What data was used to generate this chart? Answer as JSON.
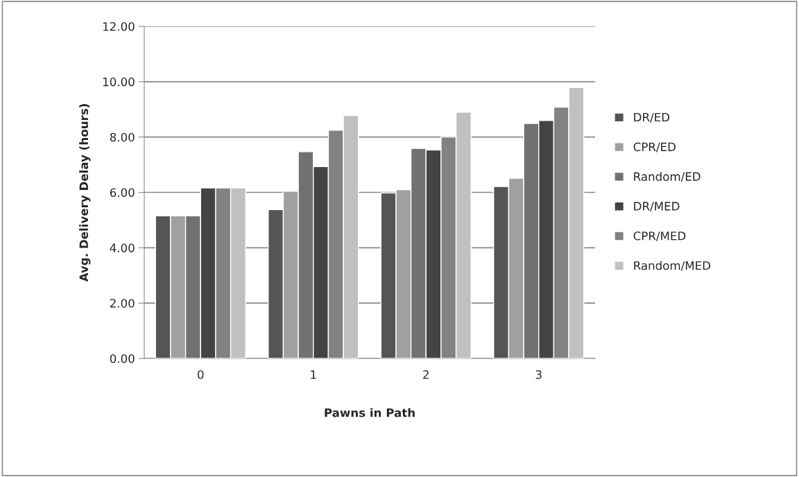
{
  "chart_data": {
    "type": "bar",
    "xlabel": "Pawns in Path",
    "ylabel": "Avg. Delivery Delay (hours)",
    "categories": [
      "0",
      "1",
      "2",
      "3"
    ],
    "series": [
      {
        "name": "DR/ED",
        "color": "#555555",
        "values": [
          5.15,
          5.38,
          5.98,
          6.21
        ]
      },
      {
        "name": "CPR/ED",
        "color": "#a0a0a0",
        "values": [
          5.15,
          6.04,
          6.1,
          6.51
        ]
      },
      {
        "name": "Random/ED",
        "color": "#717171",
        "values": [
          5.15,
          7.47,
          7.59,
          8.49
        ]
      },
      {
        "name": "DR/MED",
        "color": "#444444",
        "values": [
          6.16,
          6.93,
          7.53,
          8.6
        ]
      },
      {
        "name": "CPR/MED",
        "color": "#828282",
        "values": [
          6.16,
          8.25,
          8.0,
          9.08
        ]
      },
      {
        "name": "Random/MED",
        "color": "#c0c0c0",
        "values": [
          6.16,
          8.78,
          8.9,
          9.79
        ]
      }
    ],
    "ylim": [
      0,
      12
    ],
    "yticks": [
      {
        "value": 0,
        "label": "0.00"
      },
      {
        "value": 2,
        "label": "2.00"
      },
      {
        "value": 4,
        "label": "4.00"
      },
      {
        "value": 6,
        "label": "6.00"
      },
      {
        "value": 8,
        "label": "8.00"
      },
      {
        "value": 10,
        "label": "10.00"
      },
      {
        "value": 12,
        "label": "12.00"
      }
    ],
    "grid": "y",
    "legend": "right"
  }
}
